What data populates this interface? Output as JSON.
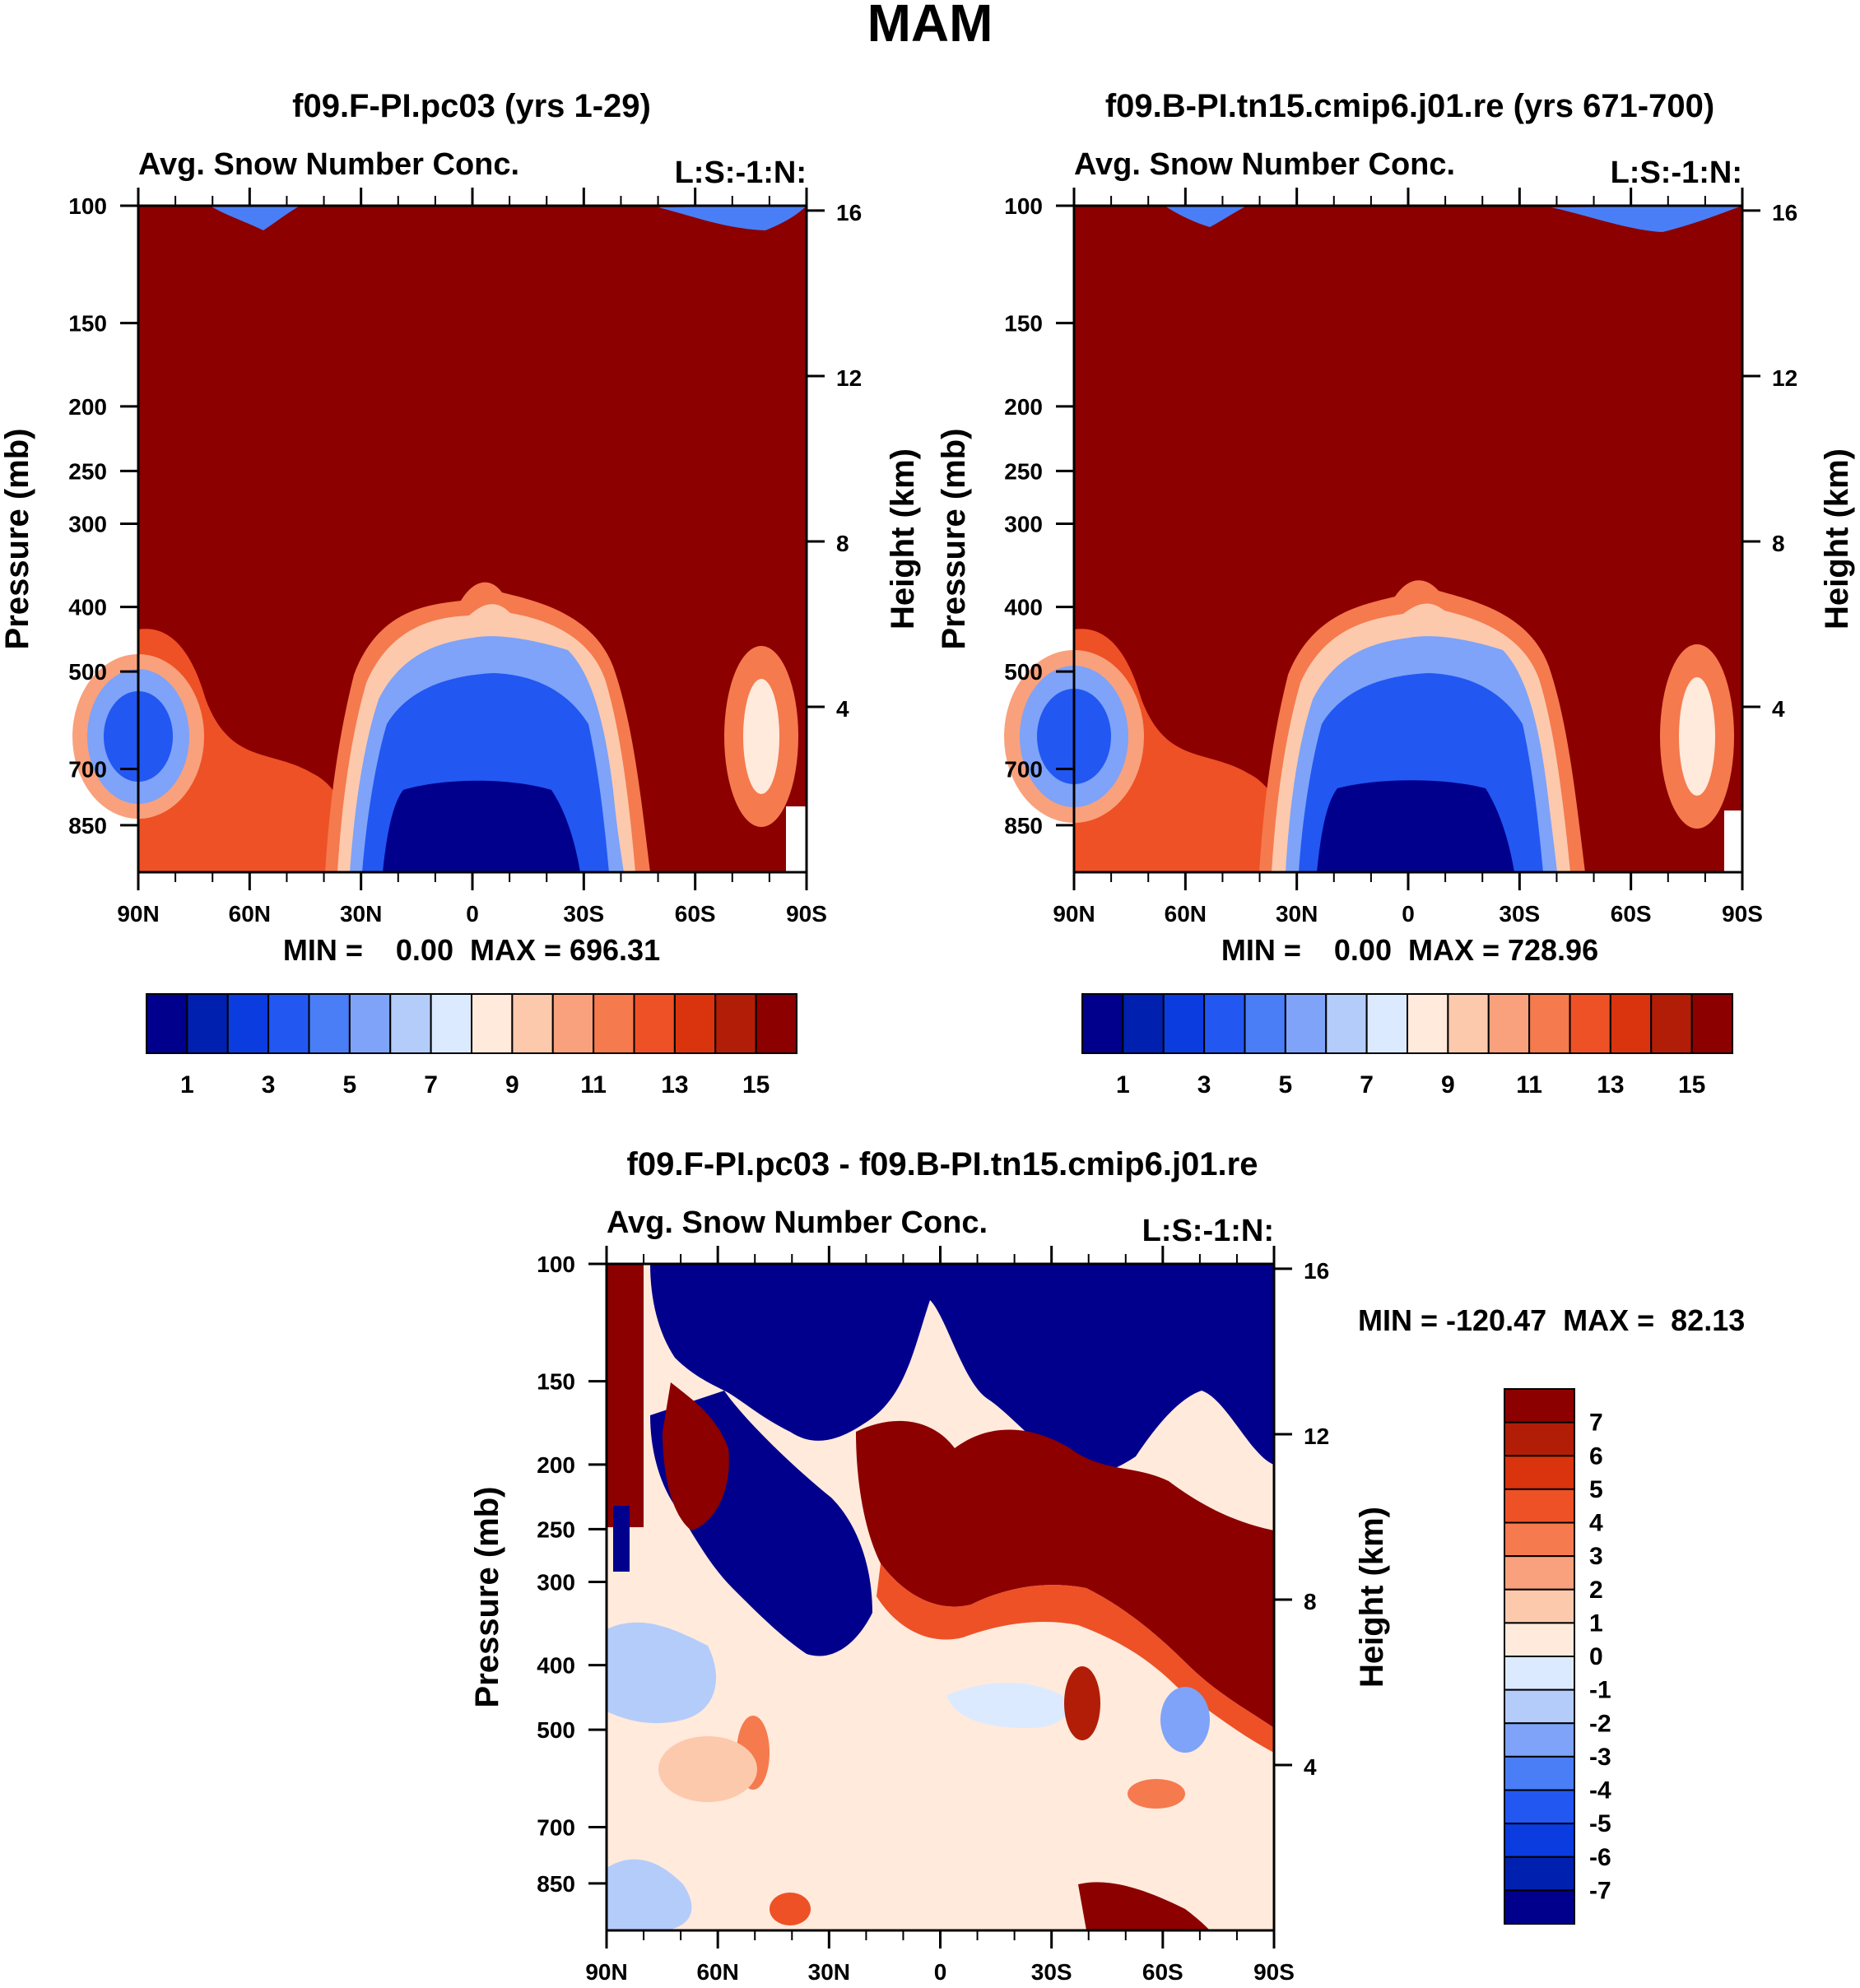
{
  "figure": {
    "title": "MAM"
  },
  "chart_data": [
    {
      "type": "heatmap",
      "title": "f09.F-PI.pc03 (yrs 1-29)",
      "subtitle_left": "Avg. Snow Number Conc.",
      "subtitle_right": "L:S:-1:N:",
      "ylabel": "Pressure (mb)",
      "ylabel_right": "Height (km)",
      "x_ticks": [
        "90N",
        "60N",
        "30N",
        "0",
        "30S",
        "60S",
        "90S"
      ],
      "y_ticks": [
        100,
        150,
        200,
        250,
        300,
        400,
        500,
        700,
        850
      ],
      "y_ticks_right": [
        16,
        12,
        8,
        4
      ],
      "ylim": [
        100,
        1000
      ],
      "stats": "MIN =    0.00  MAX = 696.31",
      "colorbar": {
        "orientation": "horizontal",
        "labels": [
          "1",
          "3",
          "5",
          "7",
          "9",
          "11",
          "13",
          "15"
        ],
        "colors": [
          "#00008c",
          "#0020b0",
          "#0a3ce0",
          "#2257f2",
          "#4a7ef7",
          "#7ea3f8",
          "#b4ccfa",
          "#dceaff",
          "#ffeadc",
          "#fcc9ad",
          "#f9a17c",
          "#f57a4e",
          "#ee5126",
          "#d9340d",
          "#b21d07",
          "#8c0000"
        ]
      }
    },
    {
      "type": "heatmap",
      "title": "f09.B-PI.tn15.cmip6.j01.re (yrs 671-700)",
      "subtitle_left": "Avg. Snow Number Conc.",
      "subtitle_right": "L:S:-1:N:",
      "ylabel": "Pressure (mb)",
      "ylabel_right": "Height (km)",
      "x_ticks": [
        "90N",
        "60N",
        "30N",
        "0",
        "30S",
        "60S",
        "90S"
      ],
      "y_ticks": [
        100,
        150,
        200,
        250,
        300,
        400,
        500,
        700,
        850
      ],
      "y_ticks_right": [
        16,
        12,
        8,
        4
      ],
      "ylim": [
        100,
        1000
      ],
      "stats": "MIN =    0.00  MAX = 728.96",
      "colorbar": {
        "orientation": "horizontal",
        "labels": [
          "1",
          "3",
          "5",
          "7",
          "9",
          "11",
          "13",
          "15"
        ],
        "colors": [
          "#00008c",
          "#0020b0",
          "#0a3ce0",
          "#2257f2",
          "#4a7ef7",
          "#7ea3f8",
          "#b4ccfa",
          "#dceaff",
          "#ffeadc",
          "#fcc9ad",
          "#f9a17c",
          "#f57a4e",
          "#ee5126",
          "#d9340d",
          "#b21d07",
          "#8c0000"
        ]
      }
    },
    {
      "type": "heatmap",
      "title": "f09.F-PI.pc03 - f09.B-PI.tn15.cmip6.j01.re",
      "subtitle_left": "Avg. Snow Number Conc.",
      "subtitle_right": "L:S:-1:N:",
      "ylabel": "Pressure (mb)",
      "ylabel_right": "Height (km)",
      "x_ticks": [
        "90N",
        "60N",
        "30N",
        "0",
        "30S",
        "60S",
        "90S"
      ],
      "y_ticks": [
        100,
        150,
        200,
        250,
        300,
        400,
        500,
        700,
        850
      ],
      "y_ticks_right": [
        16,
        12,
        8,
        4
      ],
      "ylim": [
        100,
        1000
      ],
      "stats": "MIN = -120.47  MAX =  82.13",
      "colorbar": {
        "orientation": "vertical",
        "labels": [
          "7",
          "6",
          "5",
          "4",
          "3",
          "2",
          "1",
          "0",
          "-1",
          "-2",
          "-3",
          "-4",
          "-5",
          "-6",
          "-7"
        ],
        "colors": [
          "#8c0000",
          "#b21d07",
          "#d9340d",
          "#ee5126",
          "#f57a4e",
          "#f9a17c",
          "#fcc9ad",
          "#ffeadc",
          "#dceaff",
          "#b4ccfa",
          "#7ea3f8",
          "#4a7ef7",
          "#2257f2",
          "#0a3ce0",
          "#0020b0",
          "#00008c"
        ]
      }
    }
  ]
}
